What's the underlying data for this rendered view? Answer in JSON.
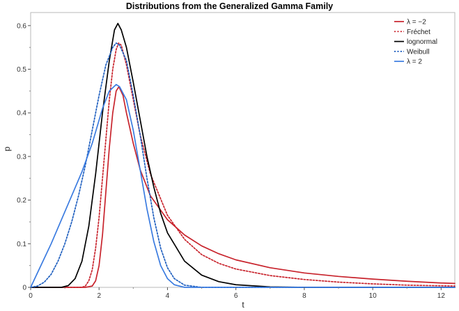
{
  "chart_data": {
    "type": "line",
    "title": "Distributions from the Generalized Gamma Family",
    "xlabel": "t",
    "ylabel": "p",
    "xlim": [
      0,
      12.4
    ],
    "ylim": [
      0,
      0.63
    ],
    "x_ticks": [
      0,
      2,
      4,
      6,
      8,
      10,
      12
    ],
    "x_tick_labels": [
      "0",
      "2",
      "4",
      "6",
      "8",
      "10",
      "12"
    ],
    "y_ticks": [
      0,
      0.1,
      0.2,
      0.3,
      0.4,
      0.5,
      0.6
    ],
    "y_tick_labels": [
      "0",
      "0.1",
      "0.2",
      "0.3",
      "0.4",
      "0.5",
      "0.6"
    ],
    "grid": false,
    "legend_position": "top-right",
    "series": [
      {
        "name": "λ = −2",
        "color": "#c8232c",
        "dash": "solid",
        "points": [
          [
            0,
            0
          ],
          [
            1.6,
            0
          ],
          [
            1.8,
            0.003
          ],
          [
            1.9,
            0.015
          ],
          [
            2.0,
            0.05
          ],
          [
            2.1,
            0.12
          ],
          [
            2.2,
            0.22
          ],
          [
            2.3,
            0.32
          ],
          [
            2.4,
            0.4
          ],
          [
            2.5,
            0.45
          ],
          [
            2.58,
            0.46
          ],
          [
            2.7,
            0.44
          ],
          [
            2.8,
            0.4
          ],
          [
            3.0,
            0.33
          ],
          [
            3.2,
            0.27
          ],
          [
            3.5,
            0.21
          ],
          [
            4.0,
            0.155
          ],
          [
            4.5,
            0.12
          ],
          [
            5.0,
            0.095
          ],
          [
            5.5,
            0.077
          ],
          [
            6.0,
            0.063
          ],
          [
            7.0,
            0.045
          ],
          [
            8.0,
            0.033
          ],
          [
            9.0,
            0.025
          ],
          [
            10.0,
            0.019
          ],
          [
            11.0,
            0.014
          ],
          [
            12.0,
            0.01
          ],
          [
            12.4,
            0.009
          ]
        ]
      },
      {
        "name": "Fréchet",
        "color": "#c8232c",
        "dash": "dotted",
        "points": [
          [
            0,
            0
          ],
          [
            1.5,
            0
          ],
          [
            1.6,
            0.003
          ],
          [
            1.7,
            0.015
          ],
          [
            1.8,
            0.04
          ],
          [
            1.9,
            0.09
          ],
          [
            2.0,
            0.16
          ],
          [
            2.1,
            0.25
          ],
          [
            2.2,
            0.34
          ],
          [
            2.3,
            0.43
          ],
          [
            2.4,
            0.5
          ],
          [
            2.5,
            0.545
          ],
          [
            2.57,
            0.56
          ],
          [
            2.65,
            0.555
          ],
          [
            2.8,
            0.51
          ],
          [
            3.0,
            0.43
          ],
          [
            3.2,
            0.35
          ],
          [
            3.5,
            0.26
          ],
          [
            4.0,
            0.165
          ],
          [
            4.5,
            0.11
          ],
          [
            5.0,
            0.075
          ],
          [
            5.5,
            0.055
          ],
          [
            6.0,
            0.042
          ],
          [
            7.0,
            0.027
          ],
          [
            8.0,
            0.018
          ],
          [
            9.0,
            0.012
          ],
          [
            10.0,
            0.008
          ],
          [
            11.0,
            0.005
          ],
          [
            12.4,
            0.003
          ]
        ]
      },
      {
        "name": "lognormal",
        "color": "#000000",
        "dash": "solid",
        "points": [
          [
            0,
            0
          ],
          [
            0.9,
            0
          ],
          [
            1.1,
            0.004
          ],
          [
            1.3,
            0.02
          ],
          [
            1.5,
            0.06
          ],
          [
            1.7,
            0.14
          ],
          [
            1.9,
            0.26
          ],
          [
            2.1,
            0.4
          ],
          [
            2.3,
            0.52
          ],
          [
            2.45,
            0.59
          ],
          [
            2.55,
            0.605
          ],
          [
            2.65,
            0.59
          ],
          [
            2.8,
            0.55
          ],
          [
            3.0,
            0.47
          ],
          [
            3.2,
            0.385
          ],
          [
            3.4,
            0.3
          ],
          [
            3.6,
            0.23
          ],
          [
            3.8,
            0.17
          ],
          [
            4.0,
            0.125
          ],
          [
            4.5,
            0.06
          ],
          [
            5.0,
            0.028
          ],
          [
            5.5,
            0.013
          ],
          [
            6.0,
            0.006
          ],
          [
            7.0,
            0.001
          ],
          [
            8.0,
            0
          ],
          [
            12.4,
            0
          ]
        ]
      },
      {
        "name": "Weibull",
        "color": "#1f5fbf",
        "dash": "dotted",
        "points": [
          [
            0,
            0
          ],
          [
            0.2,
            0.003
          ],
          [
            0.4,
            0.012
          ],
          [
            0.6,
            0.03
          ],
          [
            0.8,
            0.06
          ],
          [
            1.0,
            0.1
          ],
          [
            1.2,
            0.15
          ],
          [
            1.4,
            0.21
          ],
          [
            1.6,
            0.28
          ],
          [
            1.8,
            0.36
          ],
          [
            2.0,
            0.44
          ],
          [
            2.2,
            0.51
          ],
          [
            2.4,
            0.55
          ],
          [
            2.5,
            0.56
          ],
          [
            2.6,
            0.555
          ],
          [
            2.8,
            0.52
          ],
          [
            3.0,
            0.44
          ],
          [
            3.2,
            0.35
          ],
          [
            3.4,
            0.25
          ],
          [
            3.6,
            0.16
          ],
          [
            3.8,
            0.09
          ],
          [
            4.0,
            0.045
          ],
          [
            4.2,
            0.02
          ],
          [
            4.5,
            0.005
          ],
          [
            5.0,
            0
          ],
          [
            12.4,
            0
          ]
        ]
      },
      {
        "name": "λ = 2",
        "color": "#3a7be0",
        "dash": "solid",
        "points": [
          [
            0,
            0
          ],
          [
            0.3,
            0.05
          ],
          [
            0.6,
            0.1
          ],
          [
            0.9,
            0.155
          ],
          [
            1.2,
            0.21
          ],
          [
            1.5,
            0.265
          ],
          [
            1.8,
            0.33
          ],
          [
            2.1,
            0.41
          ],
          [
            2.3,
            0.45
          ],
          [
            2.5,
            0.465
          ],
          [
            2.6,
            0.46
          ],
          [
            2.8,
            0.43
          ],
          [
            3.0,
            0.36
          ],
          [
            3.2,
            0.27
          ],
          [
            3.4,
            0.18
          ],
          [
            3.6,
            0.105
          ],
          [
            3.8,
            0.05
          ],
          [
            4.0,
            0.02
          ],
          [
            4.2,
            0.006
          ],
          [
            4.5,
            0
          ],
          [
            12.4,
            0
          ]
        ]
      }
    ]
  }
}
